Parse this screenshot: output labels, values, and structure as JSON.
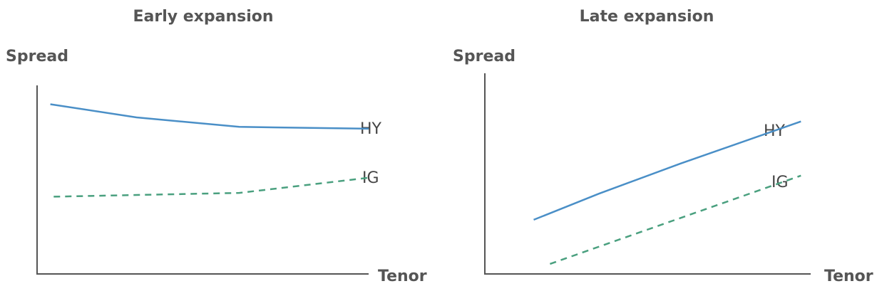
{
  "chart_data": [
    {
      "type": "line",
      "title": "Early expansion",
      "xlabel": "Tenor",
      "ylabel": "Spread",
      "xlim": [
        0,
        10
      ],
      "ylim": [
        0,
        10
      ],
      "grid": false,
      "series": [
        {
          "name": "HY",
          "color": "#4a8fc7",
          "style": "solid",
          "x": [
            0.4,
            3.0,
            6.1,
            10.0
          ],
          "y": [
            9.0,
            8.3,
            7.8,
            7.7
          ]
        },
        {
          "name": "IG",
          "color": "#4aa07f",
          "style": "dashed",
          "x": [
            0.5,
            6.1,
            10.0
          ],
          "y": [
            4.1,
            4.3,
            5.1
          ]
        }
      ]
    },
    {
      "type": "line",
      "title": "Late expansion",
      "xlabel": "Tenor",
      "ylabel": "Spread",
      "xlim": [
        0,
        10
      ],
      "ylim": [
        0,
        10
      ],
      "grid": false,
      "series": [
        {
          "name": "HY",
          "color": "#4a8fc7",
          "style": "solid",
          "x": [
            1.5,
            3.5,
            6.0,
            9.7
          ],
          "y": [
            2.7,
            4.0,
            5.5,
            7.6
          ]
        },
        {
          "name": "IG",
          "color": "#4aa07f",
          "style": "dashed",
          "x": [
            2.0,
            9.7
          ],
          "y": [
            0.5,
            4.9
          ]
        }
      ]
    }
  ]
}
